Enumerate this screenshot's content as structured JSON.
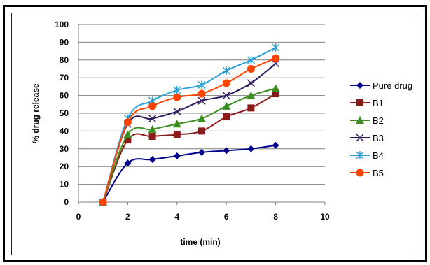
{
  "chart_data": {
    "type": "line",
    "title": "",
    "xlabel": "time (min)",
    "ylabel": "% drug release",
    "xlim": [
      0,
      10
    ],
    "ylim": [
      0,
      100
    ],
    "xticks": [
      "0",
      "2",
      "4",
      "6",
      "8",
      "10"
    ],
    "yticks": [
      "0",
      "10",
      "20",
      "30",
      "40",
      "50",
      "60",
      "70",
      "80",
      "90",
      "100"
    ],
    "grid": "horizontal",
    "legend_position": "right",
    "x": [
      1,
      2,
      3,
      4,
      5,
      6,
      7,
      8
    ],
    "series": [
      {
        "name": "Pure drug",
        "color": "#00008b",
        "marker": "diamond",
        "values": [
          0,
          22,
          24,
          26,
          28,
          29,
          30,
          32
        ]
      },
      {
        "name": "B1",
        "color": "#8b1a1a",
        "marker": "square",
        "values": [
          0,
          35,
          37,
          38,
          40,
          48,
          53,
          61
        ]
      },
      {
        "name": "B2",
        "color": "#3a8f1f",
        "marker": "triangle",
        "values": [
          0,
          38,
          41,
          44,
          47,
          54,
          60,
          64
        ]
      },
      {
        "name": "B3",
        "color": "#2e1a5a",
        "marker": "x",
        "values": [
          0,
          44,
          47,
          51,
          57,
          60,
          67,
          78
        ]
      },
      {
        "name": "B4",
        "color": "#2aa1d8",
        "marker": "star",
        "values": [
          0,
          47,
          57,
          63,
          66,
          74,
          80,
          87
        ]
      },
      {
        "name": "B5",
        "color": "#ff4400",
        "marker": "circle",
        "values": [
          0,
          45,
          54,
          59,
          61,
          67,
          75,
          81
        ]
      }
    ]
  }
}
